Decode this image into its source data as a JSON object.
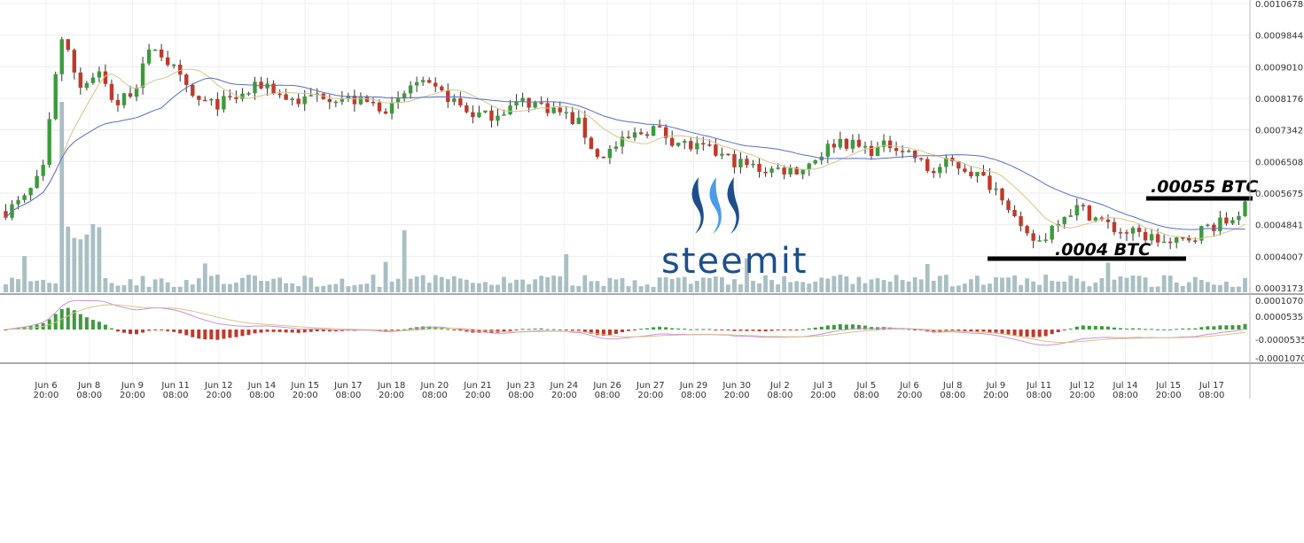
{
  "chart_data": {
    "type": "candlestick",
    "price_axis": {
      "ticks": [
        "0.0010678",
        "0.0009844",
        "0.0009010",
        "0.0008176",
        "0.0007342",
        "0.0006508",
        "0.0005675",
        "0.0004841",
        "0.0004007",
        "0.0003173"
      ],
      "ylim": [
        0.0003,
        0.00108
      ]
    },
    "macd_axis": {
      "ticks": [
        "0.00010703",
        "0.00005352",
        "-0.0000535",
        "-0.00010703"
      ]
    },
    "x_ticks": [
      {
        "d": "Jun 6",
        "t": "20:00"
      },
      {
        "d": "Jun 8",
        "t": "08:00"
      },
      {
        "d": "Jun 9",
        "t": "20:00"
      },
      {
        "d": "Jun 11",
        "t": "08:00"
      },
      {
        "d": "Jun 12",
        "t": "20:00"
      },
      {
        "d": "Jun 14",
        "t": "08:00"
      },
      {
        "d": "Jun 15",
        "t": "20:00"
      },
      {
        "d": "Jun 17",
        "t": "08:00"
      },
      {
        "d": "Jun 18",
        "t": "20:00"
      },
      {
        "d": "Jun 20",
        "t": "08:00"
      },
      {
        "d": "Jun 21",
        "t": "20:00"
      },
      {
        "d": "Jun 23",
        "t": "08:00"
      },
      {
        "d": "Jun 24",
        "t": "20:00"
      },
      {
        "d": "Jun 26",
        "t": "08:00"
      },
      {
        "d": "Jun 27",
        "t": "20:00"
      },
      {
        "d": "Jun 29",
        "t": "08:00"
      },
      {
        "d": "Jun 30",
        "t": "20:00"
      },
      {
        "d": "Jul 2",
        "t": "08:00"
      },
      {
        "d": "Jul 3",
        "t": "20:00"
      },
      {
        "d": "Jul 5",
        "t": "08:00"
      },
      {
        "d": "Jul 6",
        "t": "20:00"
      },
      {
        "d": "Jul 8",
        "t": "08:00"
      },
      {
        "d": "Jul 9",
        "t": "20:00"
      },
      {
        "d": "Jul 11",
        "t": "08:00"
      },
      {
        "d": "Jul 12",
        "t": "20:00"
      },
      {
        "d": "Jul 14",
        "t": "08:00"
      },
      {
        "d": "Jul 15",
        "t": "20:00"
      },
      {
        "d": "Jul 17",
        "t": "08:00"
      }
    ],
    "close_path": [
      [
        0,
        0.00052
      ],
      [
        2,
        0.00055
      ],
      [
        4,
        0.00062
      ],
      [
        6,
        0.00098
      ],
      [
        8,
        0.00085
      ],
      [
        10,
        0.00088
      ],
      [
        12,
        0.0008
      ],
      [
        14,
        0.00085
      ],
      [
        16,
        0.00096
      ],
      [
        18,
        0.0009
      ],
      [
        20,
        0.00082
      ],
      [
        22,
        0.0008
      ],
      [
        24,
        0.00081
      ],
      [
        26,
        0.00083
      ],
      [
        28,
        0.00086
      ],
      [
        30,
        0.00082
      ],
      [
        32,
        0.00081
      ],
      [
        34,
        0.00083
      ],
      [
        36,
        0.00082
      ],
      [
        38,
        0.00081
      ],
      [
        40,
        0.0008
      ],
      [
        42,
        0.00079
      ],
      [
        44,
        0.00086
      ],
      [
        46,
        0.00084
      ],
      [
        48,
        0.00082
      ],
      [
        50,
        0.00078
      ],
      [
        52,
        0.00077
      ],
      [
        54,
        0.00079
      ],
      [
        56,
        0.00081
      ],
      [
        58,
        0.0008
      ],
      [
        60,
        0.00078
      ],
      [
        62,
        0.00075
      ],
      [
        64,
        0.00066
      ],
      [
        66,
        0.00069
      ],
      [
        68,
        0.00072
      ],
      [
        70,
        0.00074
      ],
      [
        72,
        0.00071
      ],
      [
        74,
        0.00069
      ],
      [
        76,
        0.00068
      ],
      [
        78,
        0.00066
      ],
      [
        80,
        0.00064
      ],
      [
        82,
        0.00063
      ],
      [
        84,
        0.00063
      ],
      [
        86,
        0.00063
      ],
      [
        88,
        0.00067
      ],
      [
        90,
        0.00071
      ],
      [
        92,
        0.00069
      ],
      [
        94,
        0.00068
      ],
      [
        96,
        0.0007
      ],
      [
        98,
        0.00067
      ],
      [
        100,
        0.00062
      ],
      [
        102,
        0.00065
      ],
      [
        104,
        0.00063
      ],
      [
        106,
        0.0006
      ],
      [
        108,
        0.00056
      ],
      [
        110,
        0.00045
      ],
      [
        112,
        0.00044
      ],
      [
        114,
        0.00051
      ],
      [
        116,
        0.00053
      ],
      [
        118,
        0.0005
      ],
      [
        120,
        0.00047
      ],
      [
        122,
        0.00046
      ],
      [
        124,
        0.00045
      ],
      [
        126,
        0.00043
      ],
      [
        128,
        0.00045
      ],
      [
        130,
        0.00048
      ],
      [
        132,
        0.00049
      ],
      [
        134,
        0.00053
      ]
    ],
    "overlays": [
      "MA fast (tan)",
      "MA slow (blue)",
      "Volume",
      "MACD"
    ],
    "annotations": {
      "resistance_label": ".00055 BTC",
      "support_label": ".0004 BTC",
      "resistance_price": 0.00055,
      "support_price": 0.0004
    },
    "watermark": "steemit",
    "colors": {
      "up": "#3c9a3c",
      "down": "#c0392b",
      "ma_fast": "#d8c48a",
      "ma_slow": "#5a6fc8",
      "volume": "#a9bfc3",
      "macd_up": "#3c9a3c",
      "macd_down": "#c0392b",
      "brand": "#1e4e8c"
    }
  }
}
